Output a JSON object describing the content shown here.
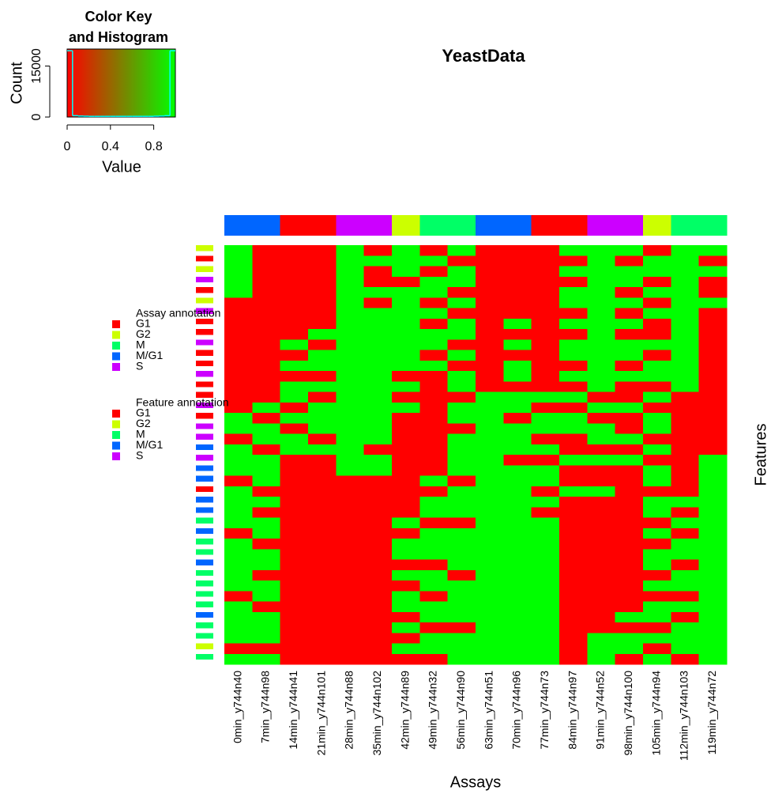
{
  "chart_data": [
    {
      "type": "histogram",
      "title": [
        "Color Key",
        "and Histogram"
      ],
      "xlabel": "Value",
      "ylabel": "Count",
      "bins": [
        0,
        0.05,
        0.1,
        0.15,
        0.2,
        0.25,
        0.3,
        0.35,
        0.4,
        0.45,
        0.5,
        0.55,
        0.6,
        0.65,
        0.7,
        0.75,
        0.8,
        0.85,
        0.9,
        0.95,
        1
      ],
      "counts": [
        19500,
        400,
        300,
        250,
        200,
        200,
        200,
        200,
        200,
        200,
        200,
        200,
        200,
        200,
        200,
        200,
        250,
        300,
        400,
        19500
      ],
      "xlim": [
        0,
        1
      ],
      "ylim": [
        0,
        20000
      ],
      "xticks": [
        0,
        0.4,
        0.8
      ],
      "yticks": [
        0,
        15000
      ],
      "colormap": [
        "#ff0000",
        "#00ff00"
      ],
      "color": "#00ffff"
    },
    {
      "type": "heatmap",
      "title": "YeastData",
      "xlabel": "Assays",
      "ylabel": "Features",
      "columns": [
        "0min_y744n40",
        "7min_y744n98",
        "14min_y744n41",
        "21min_y744n101",
        "28min_y744n88",
        "35min_y744n102",
        "42min_y744n89",
        "49min_y744n32",
        "56min_y744n90",
        "63min_y744n51",
        "70min_y744n96",
        "77min_y744n73",
        "84min_y744n97",
        "91min_y744n52",
        "98min_y744n100",
        "105min_y744n94",
        "112min_y744n103",
        "119min_y744n72"
      ],
      "column_annotation": [
        "M/G1",
        "M/G1",
        "G1",
        "G1",
        "S",
        "S",
        "G2",
        "M",
        "M",
        "M/G1",
        "M/G1",
        "G1",
        "G1",
        "S",
        "S",
        "G2",
        "M",
        "M"
      ],
      "row_annotation": [
        "G2",
        "G1",
        "G2",
        "S",
        "G1",
        "G2",
        "S",
        "G1",
        "G1",
        "S",
        "G1",
        "G1",
        "S",
        "G1",
        "G1",
        "S",
        "G1",
        "S",
        "S",
        "M/G1",
        "S",
        "M/G1",
        "M/G1",
        "G1",
        "M/G1",
        "M/G1",
        "M",
        "M/G1",
        "M",
        "M",
        "M/G1",
        "M",
        "M",
        "M",
        "M",
        "M/G1",
        "M",
        "M",
        "G2",
        "M"
      ],
      "colormap": [
        "#ff0000",
        "#00ff00"
      ],
      "classes": [
        "G1",
        "G2",
        "M",
        "M/G1",
        "S"
      ],
      "class_colors": [
        "#ff0000",
        "#ccff00",
        "#00ff66",
        "#0066ff",
        "#cc00ff"
      ],
      "legends": [
        {
          "title": "Assay annotation",
          "labels": [
            "G1",
            "G2",
            "M",
            "M/G1",
            "S"
          ]
        },
        {
          "title": "Feature annotation",
          "labels": [
            "G1",
            "G2",
            "M",
            "M/G1",
            "S"
          ]
        }
      ],
      "values": [
        [
          1,
          1,
          1,
          1,
          1,
          0,
          0,
          0,
          0,
          0,
          0,
          0,
          0,
          0,
          0,
          0,
          1,
          1,
          0,
          1,
          1,
          1,
          0,
          1,
          1,
          1,
          1,
          0,
          1,
          1,
          1,
          1,
          1,
          0,
          1,
          1,
          1,
          1,
          0,
          1
        ],
        [
          0,
          0,
          0,
          0,
          0,
          0,
          0,
          0,
          0,
          0,
          0,
          0,
          0,
          0,
          0,
          1,
          0,
          1,
          1,
          0,
          1,
          1,
          1,
          0,
          1,
          0,
          1,
          1,
          0,
          1,
          1,
          0,
          1,
          1,
          0,
          1,
          1,
          1,
          0,
          1
        ],
        [
          0,
          0,
          0,
          0,
          0,
          0,
          0,
          0,
          0,
          1,
          0,
          1,
          0,
          1,
          1,
          0,
          1,
          0,
          1,
          1,
          0,
          0,
          0,
          0,
          0,
          0,
          0,
          0,
          0,
          0,
          0,
          0,
          0,
          0,
          0,
          0,
          0,
          0,
          0,
          0
        ],
        [
          0,
          0,
          0,
          0,
          0,
          0,
          0,
          0,
          1,
          0,
          1,
          1,
          0,
          1,
          0,
          1,
          1,
          1,
          0,
          1,
          0,
          0,
          0,
          0,
          0,
          0,
          0,
          0,
          0,
          0,
          0,
          0,
          0,
          0,
          0,
          0,
          0,
          0,
          0,
          0
        ],
        [
          1,
          1,
          1,
          1,
          1,
          1,
          1,
          1,
          1,
          1,
          1,
          1,
          1,
          1,
          1,
          1,
          1,
          1,
          1,
          1,
          1,
          1,
          0,
          0,
          0,
          0,
          0,
          0,
          0,
          0,
          0,
          0,
          0,
          0,
          0,
          0,
          0,
          0,
          0,
          0
        ],
        [
          0,
          1,
          0,
          0,
          1,
          0,
          1,
          1,
          1,
          1,
          1,
          1,
          1,
          1,
          1,
          1,
          1,
          1,
          1,
          0,
          1,
          1,
          0,
          0,
          0,
          0,
          0,
          0,
          0,
          0,
          0,
          0,
          0,
          0,
          0,
          0,
          0,
          0,
          0,
          0
        ],
        [
          1,
          1,
          1,
          0,
          1,
          1,
          1,
          1,
          1,
          1,
          1,
          1,
          0,
          1,
          0,
          1,
          0,
          0,
          0,
          0,
          0,
          0,
          0,
          0,
          0,
          0,
          1,
          0,
          1,
          1,
          0,
          1,
          0,
          1,
          1,
          0,
          1,
          0,
          1,
          0
        ],
        [
          0,
          1,
          0,
          1,
          1,
          0,
          1,
          0,
          1,
          1,
          0,
          1,
          0,
          0,
          0,
          0,
          0,
          0,
          0,
          0,
          0,
          0,
          1,
          0,
          1,
          1,
          0,
          1,
          1,
          1,
          0,
          1,
          1,
          0,
          1,
          1,
          0,
          1,
          1,
          0
        ],
        [
          1,
          0,
          1,
          1,
          0,
          1,
          0,
          1,
          1,
          0,
          1,
          0,
          1,
          1,
          0,
          1,
          1,
          0,
          1,
          1,
          1,
          1,
          0,
          1,
          1,
          1,
          0,
          1,
          1,
          1,
          1,
          0,
          1,
          1,
          1,
          1,
          0,
          1,
          1,
          1
        ],
        [
          0,
          0,
          0,
          0,
          0,
          0,
          0,
          0,
          0,
          0,
          0,
          0,
          0,
          0,
          1,
          1,
          1,
          1,
          1,
          1,
          1,
          1,
          1,
          1,
          1,
          1,
          1,
          1,
          1,
          1,
          1,
          1,
          1,
          1,
          1,
          1,
          1,
          1,
          1,
          1
        ],
        [
          0,
          0,
          0,
          0,
          0,
          0,
          0,
          1,
          0,
          1,
          0,
          1,
          1,
          0,
          1,
          1,
          0,
          1,
          1,
          1,
          0,
          1,
          1,
          1,
          1,
          1,
          1,
          1,
          1,
          1,
          1,
          1,
          1,
          1,
          1,
          1,
          1,
          1,
          1,
          1
        ],
        [
          0,
          0,
          0,
          0,
          0,
          0,
          0,
          0,
          0,
          0,
          0,
          0,
          0,
          0,
          1,
          0,
          1,
          1,
          0,
          1,
          0,
          1,
          1,
          0,
          1,
          0,
          1,
          1,
          1,
          1,
          1,
          1,
          1,
          1,
          1,
          1,
          1,
          1,
          1,
          1
        ],
        [
          1,
          0,
          1,
          0,
          1,
          1,
          0,
          1,
          0,
          1,
          1,
          0,
          1,
          0,
          1,
          0,
          1,
          1,
          0,
          0,
          1,
          0,
          0,
          1,
          0,
          0,
          0,
          0,
          0,
          0,
          0,
          0,
          0,
          0,
          0,
          0,
          0,
          0,
          0,
          0
        ],
        [
          1,
          1,
          1,
          1,
          1,
          1,
          1,
          1,
          1,
          1,
          1,
          1,
          1,
          1,
          0,
          1,
          0,
          1,
          1,
          0,
          1,
          0,
          0,
          1,
          0,
          0,
          0,
          0,
          0,
          0,
          0,
          0,
          0,
          0,
          0,
          0,
          0,
          1,
          1,
          1
        ],
        [
          1,
          0,
          1,
          1,
          0,
          1,
          0,
          1,
          0,
          1,
          1,
          0,
          1,
          0,
          0,
          1,
          0,
          0,
          1,
          0,
          1,
          0,
          0,
          0,
          0,
          0,
          0,
          0,
          0,
          0,
          0,
          0,
          0,
          0,
          0,
          1,
          0,
          1,
          1,
          0
        ],
        [
          0,
          1,
          1,
          0,
          1,
          0,
          1,
          0,
          0,
          1,
          0,
          1,
          1,
          0,
          1,
          0,
          1,
          1,
          0,
          1,
          0,
          1,
          1,
          0,
          1,
          1,
          0,
          1,
          0,
          1,
          1,
          0,
          1,
          0,
          1,
          1,
          0,
          1,
          0,
          1
        ],
        [
          1,
          1,
          1,
          1,
          1,
          1,
          1,
          1,
          1,
          1,
          1,
          1,
          1,
          1,
          0,
          0,
          0,
          0,
          0,
          0,
          0,
          0,
          0,
          0,
          1,
          0,
          1,
          0,
          1,
          1,
          0,
          1,
          1,
          0,
          1,
          0,
          1,
          1,
          1,
          0
        ],
        [
          1,
          0,
          1,
          0,
          0,
          1,
          0,
          0,
          0,
          0,
          0,
          0,
          0,
          0,
          0,
          0,
          0,
          0,
          0,
          0,
          1,
          1,
          1,
          1,
          1,
          1,
          1,
          1,
          1,
          1,
          1,
          1,
          1,
          1,
          1,
          1,
          1,
          1,
          1,
          1
        ]
      ]
    }
  ]
}
